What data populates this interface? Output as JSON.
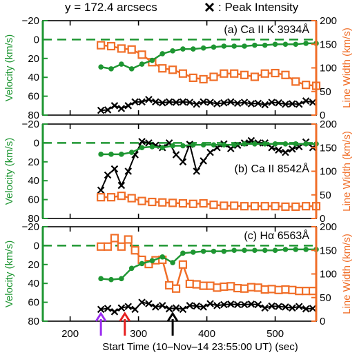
{
  "header": {
    "left_text": "y = 172.4 arcsecs",
    "right_text": ": Peak Intensity"
  },
  "colors": {
    "velocity": "#1e9632",
    "width": "#f06e28",
    "intensity": "#000000",
    "arrow1": "#9b2cf0",
    "arrow2": "#e61e1e",
    "arrow3": "#000000"
  },
  "chart_data": {
    "type": "line",
    "xlabel": "Start Time (10–Nov–14 23:55:00 UT)  (sec)",
    "xlim": [
      160,
      560
    ],
    "xticks": [
      200,
      300,
      400,
      500
    ],
    "left_axis": {
      "label": "Velocity (km/s)",
      "ylim": [
        80,
        -20
      ],
      "ticks": [
        -20,
        0,
        20,
        40,
        60,
        80
      ]
    },
    "right_axis": {
      "label": "Line Width (km/s)",
      "ylim": [
        0,
        200
      ],
      "ticks": [
        0,
        50,
        100,
        150,
        200
      ]
    },
    "arrows_x": [
      245,
      280,
      350
    ],
    "panels": [
      {
        "label": "(a) Ca II K 3934Å",
        "velocity": {
          "x": [
            245,
            260,
            275,
            290,
            305,
            320,
            335,
            350,
            365,
            380,
            395,
            410,
            425,
            440,
            455,
            470,
            485,
            500,
            515,
            530,
            545,
            560
          ],
          "y": [
            29,
            31,
            26,
            31,
            26,
            22,
            15,
            12,
            10,
            10,
            9,
            8,
            7,
            7,
            7,
            6,
            6,
            5,
            5,
            5,
            4,
            4
          ]
        },
        "line_width": {
          "x": [
            245,
            260,
            275,
            290,
            305,
            320,
            335,
            350,
            365,
            380,
            395,
            410,
            425,
            440,
            455,
            470,
            485,
            500,
            515,
            530,
            545,
            560
          ],
          "y": [
            148,
            146,
            141,
            139,
            128,
            112,
            99,
            96,
            88,
            79,
            76,
            81,
            88,
            88,
            85,
            81,
            88,
            89,
            85,
            71,
            64,
            62
          ]
        },
        "intensity": {
          "x": [
            245,
            255,
            265,
            275,
            285,
            295,
            305,
            315,
            325,
            335,
            345,
            355,
            365,
            375,
            385,
            395,
            405,
            415,
            425,
            435,
            445,
            455,
            465,
            475,
            485,
            495,
            505,
            515,
            525,
            535,
            545,
            555
          ],
          "y": [
            10,
            11,
            20,
            14,
            20,
            28,
            28,
            33,
            28,
            26,
            28,
            27,
            28,
            27,
            23,
            28,
            27,
            24,
            26,
            28,
            25,
            27,
            24,
            25,
            22,
            27,
            26,
            23,
            24,
            23,
            30,
            27
          ]
        }
      },
      {
        "label": "(b) Ca II 8542Å",
        "velocity": {
          "x": [
            245,
            260,
            275,
            290,
            305,
            320,
            335,
            350,
            365,
            380,
            395,
            410,
            425,
            440,
            455,
            470,
            485,
            500,
            515,
            530,
            545,
            560
          ],
          "y": [
            12,
            12,
            12,
            10,
            5,
            4,
            5,
            3,
            3,
            2,
            2,
            2,
            2,
            2,
            1,
            1,
            1,
            1,
            1,
            1,
            1,
            1
          ]
        },
        "line_width": {
          "x": [
            245,
            260,
            275,
            290,
            305,
            320,
            335,
            350,
            365,
            380,
            395,
            410,
            425,
            440,
            455,
            470,
            485,
            500,
            515,
            530,
            545,
            560
          ],
          "y": [
            45,
            45,
            48,
            43,
            37,
            35,
            34,
            33,
            32,
            31,
            32,
            29,
            27,
            27,
            26,
            26,
            26,
            26,
            25,
            25,
            26,
            26
          ]
        },
        "intensity": {
          "x": [
            245,
            255,
            265,
            275,
            285,
            295,
            305,
            315,
            325,
            335,
            345,
            355,
            365,
            375,
            385,
            395,
            405,
            415,
            425,
            435,
            445,
            455,
            465,
            475,
            485,
            495,
            505,
            515,
            525,
            535,
            545,
            555
          ],
          "y": [
            60,
            92,
            105,
            70,
            100,
            135,
            163,
            160,
            155,
            150,
            160,
            135,
            120,
            157,
            100,
            122,
            140,
            150,
            158,
            148,
            155,
            160,
            165,
            160,
            160,
            150,
            145,
            140,
            147,
            152,
            162,
            150
          ]
        }
      },
      {
        "label": "(c) Hα 6563Å",
        "velocity": {
          "x": [
            245,
            260,
            275,
            290,
            305,
            320,
            335,
            350,
            365,
            380,
            395,
            410,
            425,
            440,
            455,
            470,
            485,
            500,
            515,
            530,
            545,
            560
          ],
          "y": [
            35,
            36,
            35,
            24,
            19,
            16,
            12,
            18,
            8,
            7,
            6,
            6,
            6,
            5,
            5,
            5,
            5,
            5,
            4,
            4,
            4,
            4
          ]
        },
        "line_width": {
          "x": [
            245,
            255,
            265,
            275,
            285,
            295,
            305,
            315,
            325,
            335,
            345,
            355,
            365,
            375,
            385,
            395,
            405,
            415,
            425,
            435,
            445,
            455,
            465,
            475,
            485,
            495,
            505,
            515,
            525,
            535,
            545,
            555
          ],
          "y": [
            158,
            158,
            176,
            158,
            173,
            150,
            130,
            121,
            129,
            130,
            76,
            69,
            120,
            79,
            78,
            75,
            75,
            71,
            73,
            74,
            70,
            69,
            72,
            71,
            67,
            68,
            66,
            67,
            66,
            64,
            64,
            64
          ]
        },
        "intensity": {
          "x": [
            245,
            255,
            265,
            275,
            285,
            295,
            305,
            315,
            325,
            335,
            345,
            355,
            365,
            375,
            385,
            395,
            405,
            415,
            425,
            435,
            445,
            455,
            465,
            475,
            485,
            495,
            505,
            515,
            525,
            535,
            545,
            555
          ],
          "y": [
            25,
            27,
            20,
            28,
            31,
            25,
            40,
            37,
            30,
            33,
            26,
            28,
            25,
            33,
            32,
            30,
            37,
            33,
            35,
            36,
            35,
            35,
            36,
            35,
            28,
            32,
            31,
            30,
            28,
            31,
            26,
            27
          ]
        }
      }
    ]
  }
}
